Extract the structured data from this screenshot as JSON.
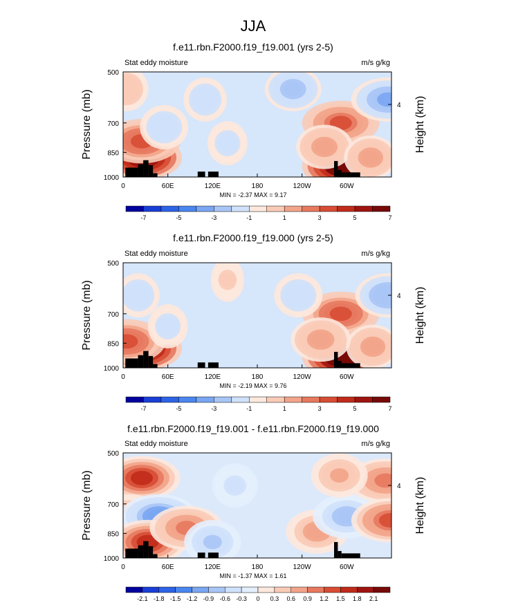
{
  "page_title": "JJA",
  "chart_data": [
    {
      "type": "heatmap",
      "title": "f.e11.rbn.F2000.f19_f19.001 (yrs 2-5)",
      "left_label": "Stat eddy moisture",
      "right_label": "m/s g/kg",
      "ylabel": "Pressure (mb)",
      "ylabel_right": "Height (km)",
      "xticks": [
        "0",
        "60E",
        "120E",
        "180",
        "120W",
        "60W"
      ],
      "xtick_values": [
        0,
        60,
        120,
        180,
        240,
        300
      ],
      "xlim": [
        0,
        360
      ],
      "yticks": [
        "500",
        "700",
        "850",
        "1000"
      ],
      "ytick_values": [
        500,
        700,
        850,
        1000
      ],
      "ylim": [
        1000,
        500
      ],
      "yticks_right": [
        "4"
      ],
      "min_max": "MIN =  -2.37  MAX =   9.17",
      "colorbar_labels": [
        "-7",
        "-5",
        "-3",
        "-1",
        "1",
        "3",
        "5",
        "7"
      ],
      "colorbar_colors": [
        "#02029e",
        "#1a3fd6",
        "#2d63e6",
        "#4a86ef",
        "#7aa6f2",
        "#a8c5f6",
        "#cfe1fb",
        "#fde8dd",
        "#f9cbb7",
        "#f2a48a",
        "#e7795f",
        "#d74d34",
        "#c02b1a",
        "#9e1410",
        "#760a08"
      ],
      "features": [
        {
          "lon": 27,
          "p": 880,
          "value": 7.5
        },
        {
          "lon": 25,
          "p": 790,
          "value": 4.0
        },
        {
          "lon": 292,
          "p": 930,
          "value": 8.0
        },
        {
          "lon": 292,
          "p": 700,
          "value": 3.5
        },
        {
          "lon": 270,
          "p": 820,
          "value": 2.0
        },
        {
          "lon": 332,
          "p": 880,
          "value": 1.8
        },
        {
          "lon": 355,
          "p": 600,
          "value": -3.0
        },
        {
          "lon": 228,
          "p": 560,
          "value": -2.0
        },
        {
          "lon": 110,
          "p": 600,
          "value": -1.2
        },
        {
          "lon": 55,
          "p": 720,
          "value": -1.5
        },
        {
          "lon": 5,
          "p": 560,
          "value": 1.2
        },
        {
          "lon": 140,
          "p": 800,
          "value": -1.0
        }
      ]
    },
    {
      "type": "heatmap",
      "title": "f.e11.rbn.F2000.f19_f19.000 (yrs 2-5)",
      "left_label": "Stat eddy moisture",
      "right_label": "m/s g/kg",
      "ylabel": "Pressure (mb)",
      "ylabel_right": "Height (km)",
      "xticks": [
        "0",
        "60E",
        "120E",
        "180",
        "120W",
        "60W"
      ],
      "xtick_values": [
        0,
        60,
        120,
        180,
        240,
        300
      ],
      "xlim": [
        0,
        360
      ],
      "yticks": [
        "500",
        "700",
        "850",
        "1000"
      ],
      "ytick_values": [
        500,
        700,
        850,
        1000
      ],
      "ylim": [
        1000,
        500
      ],
      "yticks_right": [
        "4"
      ],
      "min_max": "MIN =  -2.19  MAX =   9.76",
      "colorbar_labels": [
        "-7",
        "-5",
        "-3",
        "-1",
        "1",
        "3",
        "5",
        "7"
      ],
      "colorbar_colors": [
        "#02029e",
        "#1a3fd6",
        "#2d63e6",
        "#4a86ef",
        "#7aa6f2",
        "#a8c5f6",
        "#cfe1fb",
        "#fde8dd",
        "#f9cbb7",
        "#f2a48a",
        "#e7795f",
        "#d74d34",
        "#c02b1a",
        "#9e1410",
        "#760a08"
      ],
      "features": [
        {
          "lon": 27,
          "p": 880,
          "value": 7.5
        },
        {
          "lon": 5,
          "p": 840,
          "value": 4.0
        },
        {
          "lon": 292,
          "p": 930,
          "value": 8.5
        },
        {
          "lon": 292,
          "p": 700,
          "value": 3.8
        },
        {
          "lon": 265,
          "p": 830,
          "value": 2.2
        },
        {
          "lon": 335,
          "p": 870,
          "value": 1.8
        },
        {
          "lon": 355,
          "p": 620,
          "value": -2.5
        },
        {
          "lon": 235,
          "p": 620,
          "value": -1.5
        },
        {
          "lon": 20,
          "p": 620,
          "value": -1.2
        },
        {
          "lon": 140,
          "p": 560,
          "value": 0.6
        },
        {
          "lon": 60,
          "p": 760,
          "value": -1.0
        }
      ]
    },
    {
      "type": "heatmap",
      "title": "f.e11.rbn.F2000.f19_f19.001 - f.e11.rbn.F2000.f19_f19.000",
      "left_label": "Stat eddy moisture",
      "right_label": "m/s g/kg",
      "ylabel": "Pressure (mb)",
      "ylabel_right": "Height (km)",
      "xticks": [
        "0",
        "60E",
        "120E",
        "180",
        "120W",
        "60W"
      ],
      "xtick_values": [
        0,
        60,
        120,
        180,
        240,
        300
      ],
      "xlim": [
        0,
        360
      ],
      "yticks": [
        "500",
        "700",
        "850",
        "1000"
      ],
      "ytick_values": [
        500,
        700,
        850,
        1000
      ],
      "ylim": [
        1000,
        500
      ],
      "yticks_right": [
        "4"
      ],
      "min_max": "MIN =  -1.37  MAX =   1.61",
      "colorbar_labels": [
        "-2.1",
        "-1.8",
        "-1.5",
        "-1.2",
        "-0.9",
        "-0.6",
        "-0.3",
        "0",
        "0.3",
        "0.6",
        "0.9",
        "1.2",
        "1.5",
        "1.8",
        "2.1"
      ],
      "colorbar_colors": [
        "#02029e",
        "#1a3fd6",
        "#2d63e6",
        "#4a86ef",
        "#7aa6f2",
        "#a8c5f6",
        "#cfe1fb",
        "#e4effd",
        "#fde8dd",
        "#f9cbb7",
        "#f2a48a",
        "#e7795f",
        "#d74d34",
        "#c02b1a",
        "#9e1410",
        "#760a08"
      ],
      "features": [
        {
          "lon": 25,
          "p": 590,
          "value": 1.5
        },
        {
          "lon": 8,
          "p": 760,
          "value": 0.8
        },
        {
          "lon": 5,
          "p": 860,
          "value": -1.2
        },
        {
          "lon": 48,
          "p": 760,
          "value": -1.1
        },
        {
          "lon": 33,
          "p": 900,
          "value": 1.6
        },
        {
          "lon": 85,
          "p": 820,
          "value": 0.9
        },
        {
          "lon": 260,
          "p": 840,
          "value": 0.7
        },
        {
          "lon": 300,
          "p": 760,
          "value": -0.8
        },
        {
          "lon": 352,
          "p": 600,
          "value": 1.0
        },
        {
          "lon": 358,
          "p": 780,
          "value": 1.2
        },
        {
          "lon": 290,
          "p": 580,
          "value": 0.6
        },
        {
          "lon": 150,
          "p": 620,
          "value": -0.4
        },
        {
          "lon": 120,
          "p": 900,
          "value": -0.6
        }
      ]
    }
  ],
  "topography_terrain": "black surface blocks near 30E, 120E and 60W"
}
